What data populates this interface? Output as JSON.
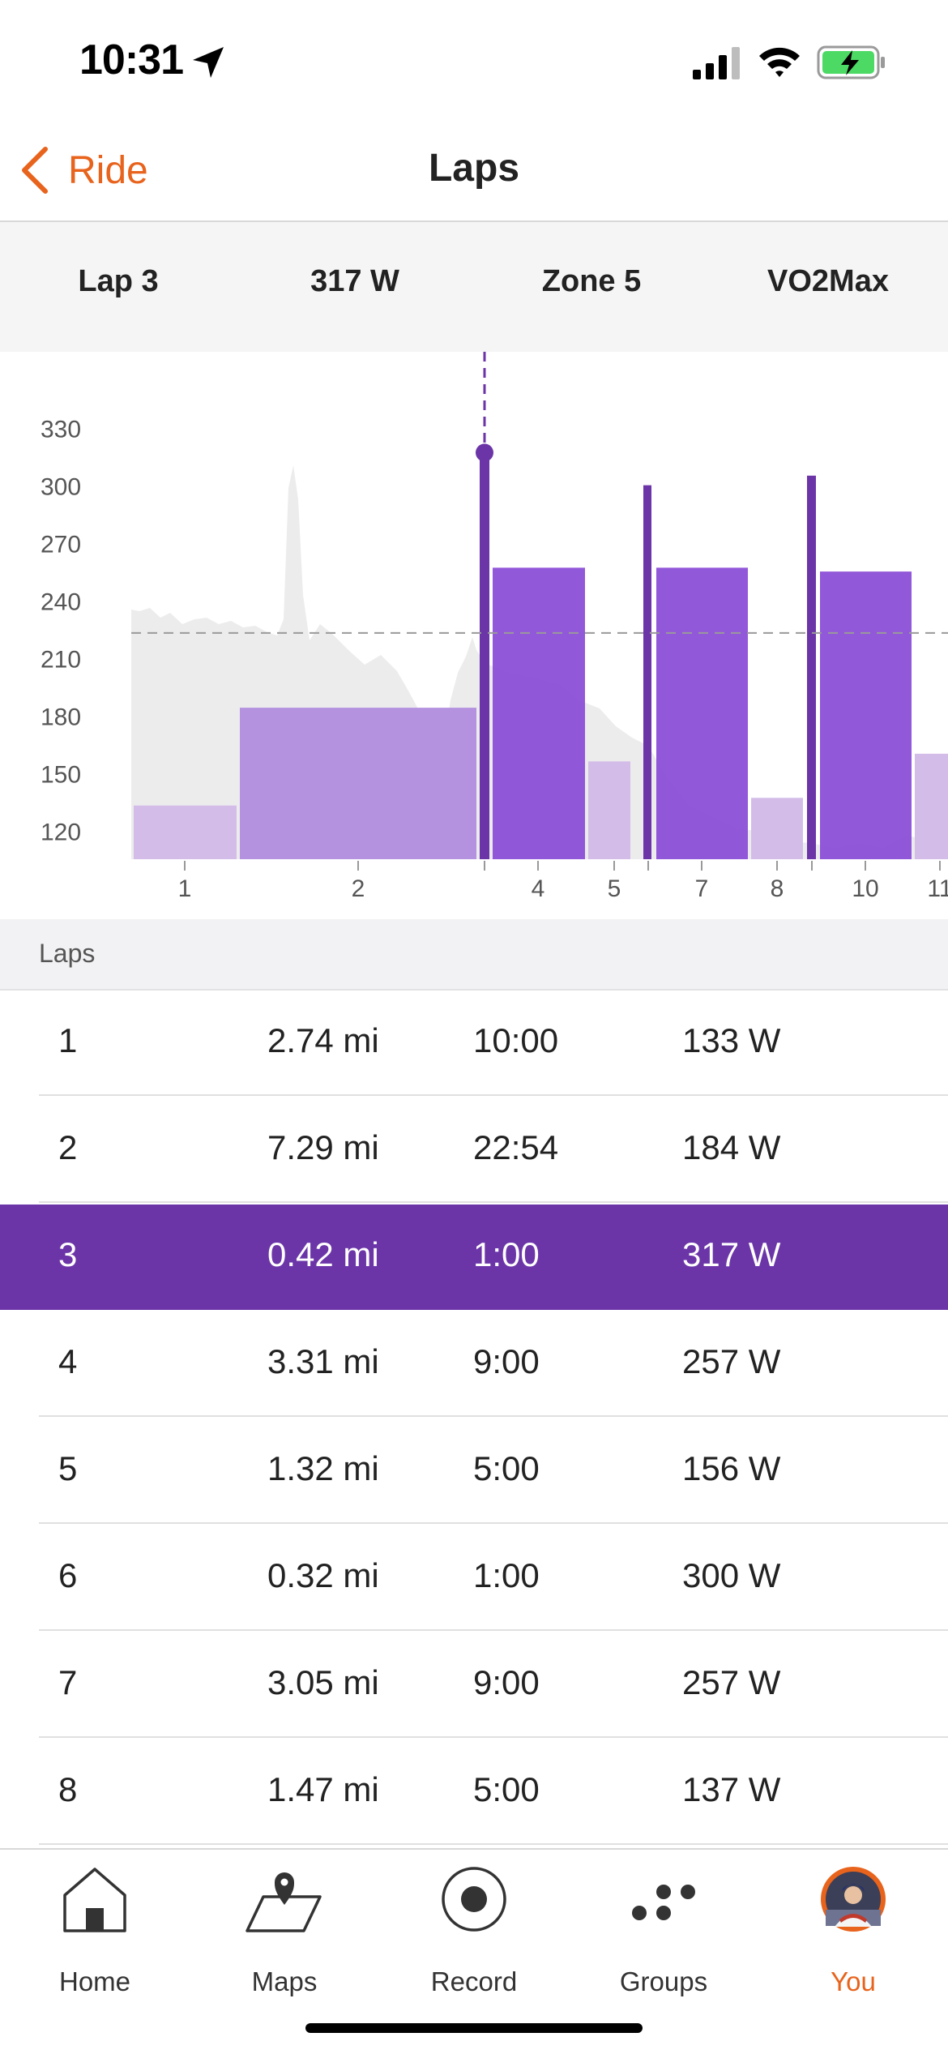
{
  "status_bar": {
    "time": "10:31"
  },
  "nav": {
    "back_label": "Ride",
    "title": "Laps"
  },
  "summary": {
    "lap": "Lap 3",
    "power": "317 W",
    "zone": "Zone 5",
    "type": "VO2Max"
  },
  "chart_data": {
    "type": "bar",
    "ylim": [
      105,
      340
    ],
    "yticks": [
      "330",
      "300",
      "270",
      "240",
      "210",
      "180",
      "150",
      "120"
    ],
    "average_line": 223,
    "selected_lap": 3,
    "xtick_labels": [
      "1",
      "2",
      "4",
      "5",
      "7",
      "8",
      "10",
      "11"
    ],
    "colors": {
      "light": "#d3bde8",
      "mid": "#b592e0",
      "dark": "#6b35a8",
      "bright": "#8c4fd8",
      "profile": "#ececec",
      "marker": "#6b35a8"
    },
    "laps": [
      {
        "lap": 1,
        "duration_min": 10.0,
        "power": 133
      },
      {
        "lap": 2,
        "duration_min": 22.9,
        "power": 184
      },
      {
        "lap": 3,
        "duration_min": 1.0,
        "power": 317
      },
      {
        "lap": 4,
        "duration_min": 9.0,
        "power": 257
      },
      {
        "lap": 5,
        "duration_min": 5.0,
        "power": 156
      },
      {
        "lap": 6,
        "duration_min": 1.0,
        "power": 300
      },
      {
        "lap": 7,
        "duration_min": 9.0,
        "power": 257
      },
      {
        "lap": 8,
        "duration_min": 5.0,
        "power": 137
      },
      {
        "lap": 9,
        "duration_min": 1.0,
        "power": 305
      },
      {
        "lap": 10,
        "duration_min": 9.0,
        "power": 255
      },
      {
        "lap": 11,
        "duration_min": 3.5,
        "power": 160
      }
    ]
  },
  "laps_section": {
    "title": "Laps"
  },
  "laps_table": [
    {
      "lap": "1",
      "distance": "2.74 mi",
      "time": "10:00",
      "power": "133 W"
    },
    {
      "lap": "2",
      "distance": "7.29 mi",
      "time": "22:54",
      "power": "184 W"
    },
    {
      "lap": "3",
      "distance": "0.42 mi",
      "time": "1:00",
      "power": "317 W"
    },
    {
      "lap": "4",
      "distance": "3.31 mi",
      "time": "9:00",
      "power": "257 W"
    },
    {
      "lap": "5",
      "distance": "1.32 mi",
      "time": "5:00",
      "power": "156 W"
    },
    {
      "lap": "6",
      "distance": "0.32 mi",
      "time": "1:00",
      "power": "300 W"
    },
    {
      "lap": "7",
      "distance": "3.05 mi",
      "time": "9:00",
      "power": "257 W"
    },
    {
      "lap": "8",
      "distance": "1.47 mi",
      "time": "5:00",
      "power": "137 W"
    }
  ],
  "selected_row": 2,
  "tabs": [
    {
      "label": "Home",
      "icon": "home-icon"
    },
    {
      "label": "Maps",
      "icon": "map-icon"
    },
    {
      "label": "Record",
      "icon": "record-icon"
    },
    {
      "label": "Groups",
      "icon": "groups-icon"
    },
    {
      "label": "You",
      "icon": "avatar"
    }
  ],
  "accent_color": "#e8631c"
}
